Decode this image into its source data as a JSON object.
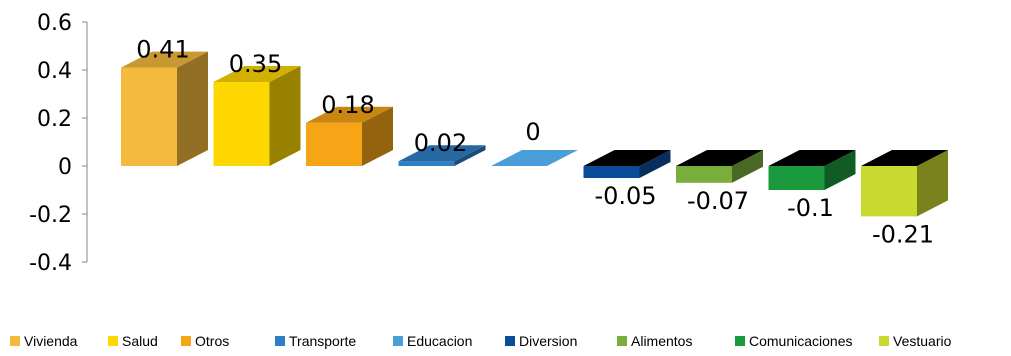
{
  "chart_data": {
    "type": "bar",
    "title": "",
    "xlabel": "",
    "ylabel": "",
    "ylim": [
      -0.4,
      0.6
    ],
    "yticks": [
      "0.6",
      "0.4",
      "0.2",
      "0",
      "-0.2",
      "-0.4"
    ],
    "three_d": true,
    "grid": false,
    "legend_position": "bottom",
    "categories": [
      "Vivienda",
      "Salud",
      "Otros",
      "Transporte",
      "Educacion",
      "Diversion",
      "Alimentos",
      "Comunicaciones",
      "Vestuario"
    ],
    "values": [
      0.41,
      0.35,
      0.18,
      0.02,
      0,
      -0.05,
      -0.07,
      -0.1,
      -0.21
    ],
    "value_labels": [
      "0.41",
      "0.35",
      "0.18",
      "0.02",
      "0",
      "-0.05",
      "-0.07",
      "-0.1",
      "-0.21"
    ],
    "colors": [
      "#F4B93D",
      "#FFD700",
      "#F5A516",
      "#2E7FC4",
      "#4A9FD8",
      "#0B4C9A",
      "#7AAE3C",
      "#1A9A3C",
      "#C9D930"
    ]
  }
}
